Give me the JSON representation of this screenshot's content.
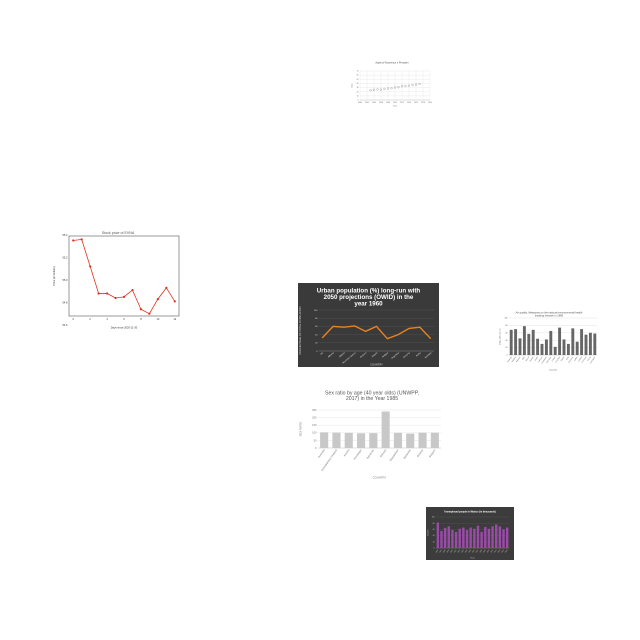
{
  "chart_data": [
    {
      "type": "scatter",
      "title": "Agea of Ascemico s Prosaen",
      "xlabel": "Years",
      "ylabel": "Value",
      "x": [
        2003,
        2004,
        2005,
        2006,
        2007,
        2008,
        2009,
        2010,
        2011,
        2012,
        2013,
        2014,
        2015,
        2016,
        2017
      ],
      "values": [
        23.5,
        24.8,
        25.6,
        25.0,
        26.8,
        27.9,
        28.3,
        30.2,
        31.0,
        33.4,
        33.9,
        34.7,
        36.1,
        37.3,
        38.8
      ],
      "xlim": [
        2000,
        2020
      ],
      "ylim": [
        0,
        70
      ],
      "x_ticks": [
        "2000",
        "2002",
        "2004",
        "2006",
        "2008",
        "2010",
        "2012",
        "2014",
        "2016",
        "2018",
        "2020"
      ],
      "y_ticks": [
        "0",
        "10",
        "20",
        "30",
        "40",
        "50",
        "60",
        "70"
      ],
      "grid": true,
      "color": "#888888"
    },
    {
      "type": "line",
      "title": "Stock price of EVNA",
      "xlabel": "Days since 2020-11-30",
      "ylabel": "Price (in Dollars)",
      "x": [
        0,
        1,
        2,
        3,
        4,
        5,
        6,
        7,
        8,
        9,
        10,
        11,
        12
      ],
      "values": [
        55.35,
        55.36,
        55.12,
        54.88,
        54.88,
        54.84,
        54.85,
        54.91,
        54.74,
        54.7,
        54.83,
        54.93,
        54.81
      ],
      "xlim": [
        -0.5,
        12.5
      ],
      "ylim": [
        54.68,
        55.39
      ],
      "x_ticks": [
        "0",
        "2",
        "4",
        "6",
        "8",
        "10",
        "12"
      ],
      "y_ticks": [
        "54.6",
        "54.8",
        "55.0",
        "55.2",
        "55.4"
      ],
      "grid": false,
      "color": "#e0321e"
    },
    {
      "type": "line",
      "title": "Urban population (%) long-run with 2050 projections (OWID) in the year 1960",
      "xlabel": "COUNTRY",
      "ylabel": "PERCENTAGE OF TOTAL POPULATION",
      "categories": [
        "UK",
        "Albania",
        "Algeria",
        "American Samoa",
        "Andorra",
        "Angola",
        "Antigua",
        "Argentina",
        "Armenia",
        "Aruba",
        "Australia"
      ],
      "values": [
        32,
        60,
        58,
        61,
        48,
        60,
        30,
        40,
        55,
        58,
        30
      ],
      "ylim": [
        0,
        100
      ],
      "y_ticks": [
        "0",
        "20",
        "40",
        "60",
        "80",
        "100"
      ],
      "grid": true,
      "color": "#e8821e"
    },
    {
      "type": "bar",
      "title": "Air quality: Measures on the national environmental health tracking network in 1989",
      "xlabel": "Counties",
      "ylabel": "Days with poor air",
      "categories": [
        "Autauga",
        "Baldwin",
        "Barbour",
        "Bibb",
        "Blount",
        "Bullock",
        "Butler",
        "Calhoun",
        "Chambers",
        "Cherokee",
        "Chilton",
        "Choctaw",
        "Clarke",
        "Clay",
        "Cleburne",
        "Coffee",
        "Colbert",
        "Conecuh",
        "Coosa",
        "Covington"
      ],
      "values": [
        68,
        70,
        45,
        78,
        57,
        68,
        44,
        30,
        42,
        65,
        22,
        74,
        42,
        30,
        72,
        36,
        70,
        55,
        60,
        58
      ],
      "ylim": [
        0,
        100
      ],
      "y_ticks": [
        "0",
        "20",
        "40",
        "60",
        "80",
        "100"
      ],
      "grid": true,
      "color": "#666666"
    },
    {
      "type": "bar",
      "title": "Sex ratio by age (40 year olds) (UNWPP, 2017) in the Year 1985",
      "xlabel": "COUNTRY",
      "ylabel": "SEX RATIO",
      "categories": [
        "Australia",
        "Australia/New Zealand",
        "Austria",
        "Azerbaijan",
        "Bahamas",
        "Bahrain",
        "Bangladesh",
        "Barbados",
        "Belarus",
        "Belgium"
      ],
      "values": [
        103,
        102,
        100,
        97,
        98,
        240,
        100,
        95,
        101,
        101
      ],
      "ylim": [
        0,
        250
      ],
      "y_ticks": [
        "0",
        "50",
        "100",
        "150",
        "200",
        "250"
      ],
      "grid": true,
      "color": "#c8c8c8"
    },
    {
      "type": "bar",
      "title": "Unemployed people in Mexico (in thousands)",
      "xlabel": "Years",
      "ylabel": "Number",
      "categories": [
        "1996",
        "1997",
        "1998",
        "1999",
        "2000",
        "2001",
        "2002",
        "2003",
        "2004",
        "2005",
        "2006",
        "2007",
        "2008",
        "2009",
        "2010",
        "2011",
        "2012",
        "2013",
        "2014",
        "2015"
      ],
      "values": [
        82,
        55,
        65,
        70,
        58,
        52,
        62,
        66,
        58,
        66,
        62,
        72,
        52,
        68,
        62,
        70,
        76,
        70,
        60,
        66
      ],
      "ylim": [
        0,
        100
      ],
      "y_ticks": [
        "0",
        "20",
        "40",
        "60",
        "80",
        "100"
      ],
      "grid": true,
      "color": "#9a4aa8"
    }
  ]
}
